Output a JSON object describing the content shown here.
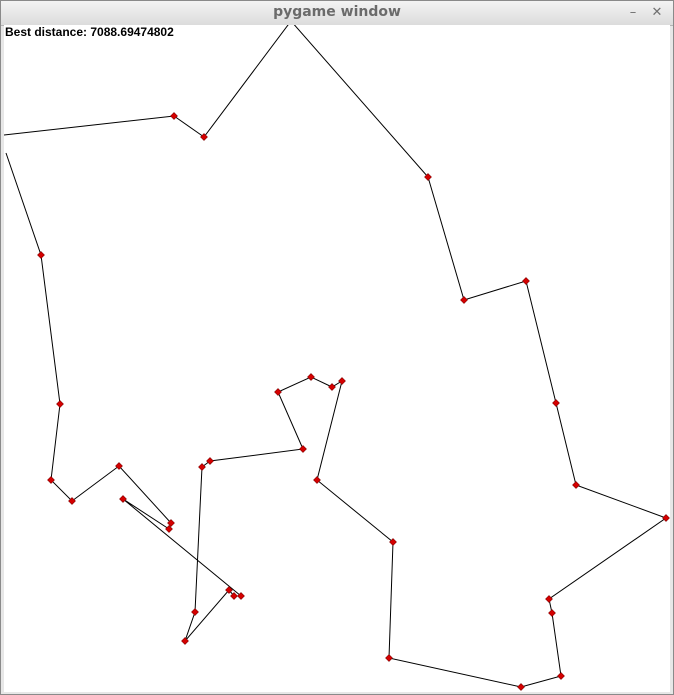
{
  "window": {
    "title": "pygame window",
    "minimize_glyph": "–",
    "close_glyph": "✕"
  },
  "status": {
    "label": "Best distance: 7088.69474802"
  },
  "colors": {
    "route": "#000000",
    "city": "#d40000",
    "city_outline": "#7a0000"
  }
}
